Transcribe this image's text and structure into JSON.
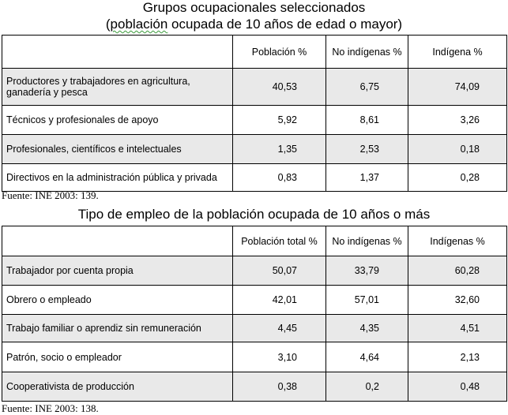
{
  "table1": {
    "title_line1": "Grupos ocupacionales seleccionados",
    "title_line2_pre": "(",
    "title_line2_word": "población",
    "title_line2_post": " ocupada de 10 años de edad o mayor)",
    "headers": [
      "",
      "Población %",
      "No indígenas %",
      "Indígena %"
    ],
    "rows": [
      {
        "label": "Productores y trabajadores en agricultura, ganadería y pesca",
        "poblacion": "40,53",
        "no_indigenas": "6,75",
        "indigena": "74,09"
      },
      {
        "label": "Técnicos y profesionales de apoyo",
        "poblacion": "5,92",
        "no_indigenas": "8,61",
        "indigena": "3,26"
      },
      {
        "label": "Profesionales, científicos e intelectuales",
        "poblacion": "1,35",
        "no_indigenas": "2,53",
        "indigena": "0,18"
      },
      {
        "label": "Directivos en la administración pública y privada",
        "poblacion": "0,83",
        "no_indigenas": "1,37",
        "indigena": "0,28"
      }
    ],
    "source": "Fuente: INE 2003: 139."
  },
  "table2": {
    "title": "Tipo de empleo de la población ocupada de 10 años o más",
    "headers": [
      "",
      "Población total %",
      "No indígenas %",
      "Indígenas %"
    ],
    "rows": [
      {
        "label": "Trabajador por cuenta propia",
        "poblacion": "50,07",
        "no_indigenas": "33,79",
        "indigena": "60,28"
      },
      {
        "label": "Obrero o empleado",
        "poblacion": "42,01",
        "no_indigenas": "57,01",
        "indigena": "32,60"
      },
      {
        "label": "Trabajo familiar o aprendiz sin remuneración",
        "poblacion": "4,45",
        "no_indigenas": "4,35",
        "indigena": "4,51"
      },
      {
        "label": "Patrón, socio o empleador",
        "poblacion": "3,10",
        "no_indigenas": "4,64",
        "indigena": "2,13"
      },
      {
        "label": "Cooperativista de producción",
        "poblacion": "0,38",
        "no_indigenas": "0,2",
        "indigena": "0,48"
      }
    ],
    "source": "Fuente: INE 2003: 138."
  }
}
